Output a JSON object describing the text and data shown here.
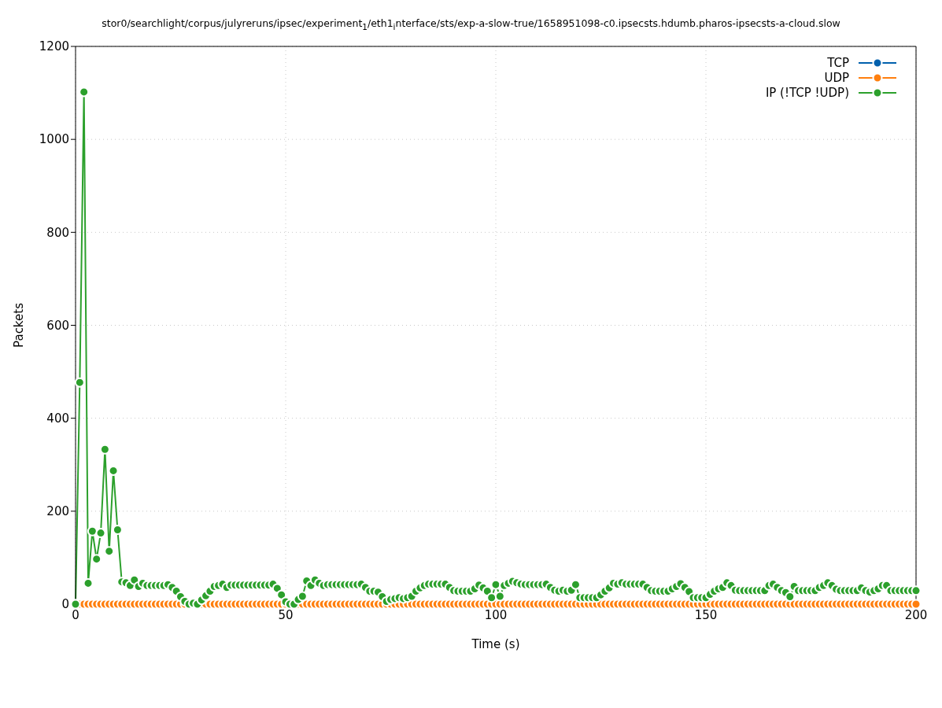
{
  "chart_data": {
    "type": "line",
    "title": "stor0/searchlight/corpus/julyreruns/ipsec/experiment$_{1}$/eth1$_{i}$nterface/sts/exp-a-slow-true/1658951098-c0.ipsecsts.hdumb.pharos-ipsecsts-a-cloud.slow",
    "xlabel": "Time (s)",
    "ylabel": "Packets",
    "x": [
      0,
      1,
      2,
      3,
      4,
      5,
      6,
      7,
      8,
      9,
      10,
      11,
      12,
      13,
      14,
      15,
      16,
      17,
      18,
      19,
      20,
      21,
      22,
      23,
      24,
      25,
      26,
      27,
      28,
      29,
      30,
      31,
      32,
      33,
      34,
      35,
      36,
      37,
      38,
      39,
      40,
      41,
      42,
      43,
      44,
      45,
      46,
      47,
      48,
      49,
      50,
      51,
      52,
      53,
      54,
      55,
      56,
      57,
      58,
      59,
      60,
      61,
      62,
      63,
      64,
      65,
      66,
      67,
      68,
      69,
      70,
      71,
      72,
      73,
      74,
      75,
      76,
      77,
      78,
      79,
      80,
      81,
      82,
      83,
      84,
      85,
      86,
      87,
      88,
      89,
      90,
      91,
      92,
      93,
      94,
      95,
      96,
      97,
      98,
      99,
      100,
      101,
      102,
      103,
      104,
      105,
      106,
      107,
      108,
      109,
      110,
      111,
      112,
      113,
      114,
      115,
      116,
      117,
      118,
      119,
      120,
      121,
      122,
      123,
      124,
      125,
      126,
      127,
      128,
      129,
      130,
      131,
      132,
      133,
      134,
      135,
      136,
      137,
      138,
      139,
      140,
      141,
      142,
      143,
      144,
      145,
      146,
      147,
      148,
      149,
      150,
      151,
      152,
      153,
      154,
      155,
      156,
      157,
      158,
      159,
      160,
      161,
      162,
      163,
      164,
      165,
      166,
      167,
      168,
      169,
      170,
      171,
      172,
      173,
      174,
      175,
      176,
      177,
      178,
      179,
      180,
      181,
      182,
      183,
      184,
      185,
      186,
      187,
      188,
      189,
      190,
      191,
      192,
      193,
      194,
      195,
      196,
      197,
      198,
      199,
      200
    ],
    "series": [
      {
        "name": "TCP",
        "color": "#0060ad",
        "values": [
          null,
          null,
          null,
          null,
          null,
          null,
          null,
          null,
          null,
          null,
          null,
          null,
          null,
          null,
          null,
          null,
          null,
          null,
          null,
          null,
          null,
          null,
          null,
          null,
          null,
          null,
          null,
          null,
          null,
          null,
          null,
          null,
          null,
          null,
          null,
          null,
          null,
          null,
          null,
          null,
          null,
          null,
          null,
          null,
          null,
          null,
          null,
          null,
          null,
          null,
          null,
          null,
          null,
          null,
          null,
          null,
          null,
          null,
          null,
          null,
          null,
          null,
          null,
          null,
          null,
          null,
          null,
          null,
          null,
          null,
          null,
          null,
          null,
          null,
          null,
          null,
          null,
          null,
          null,
          null,
          null,
          null,
          null,
          null,
          null,
          null,
          null,
          null,
          null,
          null,
          null,
          null,
          null,
          null,
          null,
          null,
          null,
          null,
          null,
          null,
          null,
          null,
          null,
          null,
          null,
          null,
          null,
          null,
          null,
          null,
          null,
          null,
          null,
          null,
          null,
          null,
          null,
          null,
          null,
          null,
          null,
          null,
          null,
          null,
          null,
          null,
          null,
          null,
          null,
          null,
          null,
          null,
          null,
          null,
          null,
          null,
          null,
          null,
          null,
          null,
          null,
          null,
          null,
          null,
          null,
          null,
          null,
          null,
          null,
          null,
          null,
          null,
          null,
          null,
          null,
          null,
          null,
          null,
          null,
          null,
          null,
          null,
          null,
          null,
          null,
          null,
          null,
          null,
          null,
          null,
          null,
          null,
          null,
          null,
          null,
          null,
          null,
          null,
          null,
          null,
          null,
          null,
          null,
          null,
          null,
          null,
          null,
          null,
          null,
          null,
          null,
          null,
          null,
          null,
          null,
          null,
          null,
          null,
          null,
          null,
          null
        ]
      },
      {
        "name": "UDP",
        "color": "#ff7f0e",
        "values": [
          0,
          0,
          0,
          0,
          0,
          0,
          0,
          0,
          0,
          0,
          0,
          0,
          0,
          0,
          0,
          0,
          0,
          0,
          0,
          0,
          0,
          0,
          0,
          0,
          0,
          0,
          0,
          0,
          0,
          0,
          0,
          0,
          0,
          0,
          0,
          0,
          0,
          0,
          0,
          0,
          0,
          0,
          0,
          0,
          0,
          0,
          0,
          0,
          0,
          0,
          0,
          0,
          0,
          0,
          0,
          0,
          0,
          0,
          0,
          0,
          0,
          0,
          0,
          0,
          0,
          0,
          0,
          0,
          0,
          0,
          0,
          0,
          0,
          0,
          0,
          0,
          0,
          0,
          0,
          0,
          0,
          0,
          0,
          0,
          0,
          0,
          0,
          0,
          0,
          0,
          0,
          0,
          0,
          0,
          0,
          0,
          0,
          0,
          0,
          0,
          0,
          0,
          0,
          0,
          0,
          0,
          0,
          0,
          0,
          0,
          0,
          0,
          0,
          0,
          0,
          0,
          0,
          0,
          0,
          0,
          0,
          0,
          0,
          0,
          0,
          0,
          0,
          0,
          0,
          0,
          0,
          0,
          0,
          0,
          0,
          0,
          0,
          0,
          0,
          0,
          0,
          0,
          0,
          0,
          0,
          0,
          0,
          0,
          0,
          0,
          0,
          0,
          0,
          0,
          0,
          0,
          0,
          0,
          0,
          0,
          0,
          0,
          0,
          0,
          0,
          0,
          0,
          0,
          0,
          0,
          0,
          0,
          0,
          0,
          0,
          0,
          0,
          0,
          0,
          0,
          0,
          0,
          0,
          0,
          0,
          0,
          0,
          0,
          0,
          0,
          0,
          0,
          0,
          0,
          0,
          0,
          0,
          0,
          0,
          0,
          0
        ]
      },
      {
        "name": "IP (!TCP  !UDP)",
        "color": "#2ca02c",
        "values": [
          0,
          477,
          1102,
          45,
          157,
          97,
          153,
          333,
          114,
          287,
          160,
          48,
          46,
          40,
          52,
          38,
          45,
          40,
          40,
          40,
          40,
          40,
          42,
          36,
          28,
          16,
          6,
          0,
          2,
          0,
          9,
          18,
          28,
          38,
          40,
          43,
          36,
          41,
          41,
          41,
          41,
          41,
          41,
          41,
          41,
          41,
          41,
          43,
          34,
          20,
          5,
          0,
          0,
          10,
          17,
          50,
          40,
          52,
          45,
          40,
          42,
          42,
          42,
          42,
          42,
          42,
          42,
          42,
          43,
          36,
          28,
          28,
          26,
          16,
          6,
          10,
          12,
          14,
          12,
          14,
          17,
          28,
          35,
          40,
          43,
          43,
          43,
          43,
          43,
          36,
          29,
          28,
          28,
          28,
          28,
          33,
          41,
          35,
          28,
          14,
          42,
          17,
          40,
          45,
          49,
          46,
          43,
          42,
          42,
          42,
          42,
          42,
          43,
          36,
          30,
          28,
          30,
          28,
          30,
          42,
          14,
          14,
          14,
          14,
          14,
          20,
          28,
          35,
          45,
          43,
          46,
          43,
          43,
          43,
          43,
          43,
          36,
          29,
          28,
          28,
          28,
          28,
          33,
          38,
          44,
          36,
          27,
          14,
          14,
          14,
          14,
          21,
          28,
          33,
          36,
          46,
          40,
          30,
          29,
          29,
          29,
          29,
          29,
          29,
          29,
          40,
          43,
          36,
          29,
          25,
          16,
          38,
          29,
          29,
          29,
          29,
          29,
          36,
          40,
          46,
          40,
          32,
          29,
          29,
          29,
          29,
          29,
          35,
          29,
          26,
          29,
          33,
          40,
          40,
          29,
          29,
          29,
          29,
          29,
          29,
          29
        ]
      }
    ],
    "xlim": [
      0,
      200
    ],
    "xticks": [
      0,
      50,
      100,
      150,
      200
    ],
    "ylim": [
      0,
      1200
    ],
    "yticks": [
      0,
      200,
      400,
      600,
      800,
      1000,
      1200
    ],
    "grid": true,
    "legend": "top right",
    "marker": "circle",
    "line_style": "solid"
  }
}
